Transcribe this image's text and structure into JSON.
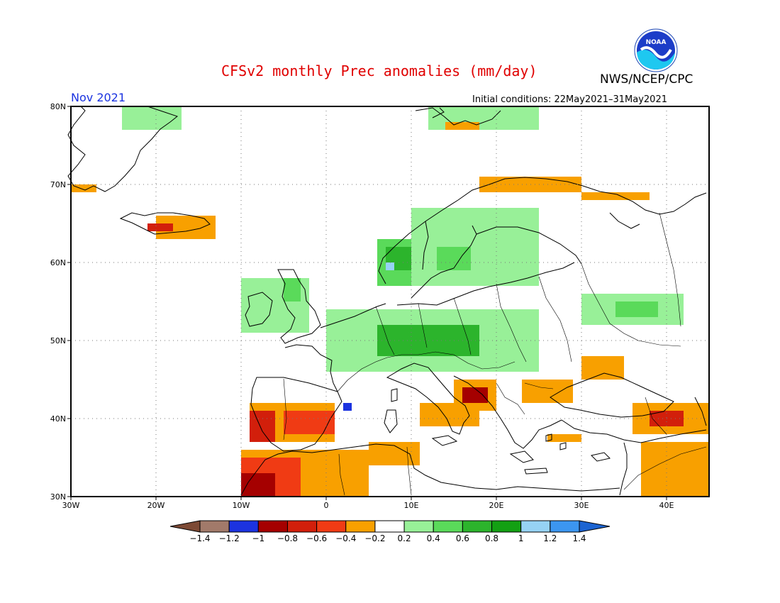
{
  "title": "CFSv2 monthly Prec anomalies (mm/day)",
  "agency": "NWS/NCEP/CPC",
  "logo_text": "NOAA",
  "month_label": "Nov 2021",
  "initial_conditions": "Initial conditions: 22May2021–31May2021",
  "map": {
    "region": "Europe",
    "lon_range": [
      -30,
      45
    ],
    "lat_range": [
      30,
      80
    ],
    "grid": "dotted",
    "lat_ticks": [
      {
        "value": 80,
        "label": "80N"
      },
      {
        "value": 70,
        "label": "70N"
      },
      {
        "value": 60,
        "label": "60N"
      },
      {
        "value": 50,
        "label": "50N"
      },
      {
        "value": 40,
        "label": "40N"
      },
      {
        "value": 30,
        "label": "30N"
      }
    ],
    "lon_ticks": [
      {
        "value": -30,
        "label": "30W"
      },
      {
        "value": -20,
        "label": "20W"
      },
      {
        "value": -10,
        "label": "10W"
      },
      {
        "value": 0,
        "label": "0"
      },
      {
        "value": 10,
        "label": "10E"
      },
      {
        "value": 20,
        "label": "20E"
      },
      {
        "value": 30,
        "label": "30E"
      },
      {
        "value": 40,
        "label": "40E"
      }
    ],
    "anomaly_regions": [
      {
        "area": "Greenland",
        "lon": [
          -24,
          -17
        ],
        "lat": [
          77,
          80
        ],
        "value": 0.3
      },
      {
        "area": "Svalbard",
        "lon": [
          12,
          25
        ],
        "lat": [
          77,
          80
        ],
        "value": 0.3
      },
      {
        "area": "Svalbard",
        "lon": [
          14,
          18
        ],
        "lat": [
          77,
          78
        ],
        "value": -0.3
      },
      {
        "area": "Greenland SE",
        "lon": [
          -30,
          -27
        ],
        "lat": [
          69,
          70
        ],
        "value": -0.3
      },
      {
        "area": "Iceland",
        "lon": [
          -20,
          -13
        ],
        "lat": [
          63,
          66
        ],
        "value": -0.3
      },
      {
        "area": "Iceland",
        "lon": [
          -21,
          -18
        ],
        "lat": [
          64,
          65
        ],
        "value": -0.8
      },
      {
        "area": "Norway",
        "lon": [
          6,
          10
        ],
        "lat": [
          57,
          63
        ],
        "value": 0.5
      },
      {
        "area": "Norway",
        "lon": [
          7,
          10
        ],
        "lat": [
          59,
          62
        ],
        "value": 0.7
      },
      {
        "area": "Norway",
        "lon": [
          7,
          8
        ],
        "lat": [
          59,
          60
        ],
        "value": 1.1
      },
      {
        "area": "Scandinavia",
        "lon": [
          10,
          25
        ],
        "lat": [
          57,
          67
        ],
        "value": 0.3
      },
      {
        "area": "Scandinavia",
        "lon": [
          13,
          17
        ],
        "lat": [
          59,
          62
        ],
        "value": 0.5
      },
      {
        "area": "North Cape",
        "lon": [
          18,
          30
        ],
        "lat": [
          69,
          71
        ],
        "value": -0.3
      },
      {
        "area": "Kola",
        "lon": [
          30,
          38
        ],
        "lat": [
          68,
          69
        ],
        "value": -0.3
      },
      {
        "area": "Britain",
        "lon": [
          -10,
          -2
        ],
        "lat": [
          51,
          58
        ],
        "value": 0.3
      },
      {
        "area": "Britain",
        "lon": [
          -5,
          -3
        ],
        "lat": [
          55,
          58
        ],
        "value": 0.5
      },
      {
        "area": "Central Europe",
        "lon": [
          0,
          25
        ],
        "lat": [
          46,
          54
        ],
        "value": 0.3
      },
      {
        "area": "Central Europe",
        "lon": [
          6,
          18
        ],
        "lat": [
          48,
          52
        ],
        "value": 0.6
      },
      {
        "area": "Russia",
        "lon": [
          30,
          42
        ],
        "lat": [
          52,
          56
        ],
        "value": 0.3
      },
      {
        "area": "Russia",
        "lon": [
          34,
          39
        ],
        "lat": [
          53,
          55
        ],
        "value": 0.5
      },
      {
        "area": "Iberia",
        "lon": [
          -9,
          1
        ],
        "lat": [
          37,
          42
        ],
        "value": -0.3
      },
      {
        "area": "Iberia",
        "lon": [
          -5,
          1
        ],
        "lat": [
          38,
          41
        ],
        "value": -0.6
      },
      {
        "area": "Iberia",
        "lon": [
          -9,
          -6
        ],
        "lat": [
          37,
          41
        ],
        "value": -0.8
      },
      {
        "area": "Catalonia",
        "lon": [
          2,
          3
        ],
        "lat": [
          41,
          42
        ],
        "value": -1.1
      },
      {
        "area": "Morocco",
        "lon": [
          -10,
          5
        ],
        "lat": [
          30,
          36
        ],
        "value": -0.3
      },
      {
        "area": "Morocco",
        "lon": [
          -10,
          -3
        ],
        "lat": [
          30,
          35
        ],
        "value": -0.6
      },
      {
        "area": "Morocco",
        "lon": [
          -10,
          -6
        ],
        "lat": [
          30,
          33
        ],
        "value": -0.9
      },
      {
        "area": "Algeria",
        "lon": [
          5,
          11
        ],
        "lat": [
          34,
          37
        ],
        "value": -0.3
      },
      {
        "area": "Italy",
        "lon": [
          11,
          18
        ],
        "lat": [
          39,
          42
        ],
        "value": -0.3
      },
      {
        "area": "Balkans",
        "lon": [
          15,
          20
        ],
        "lat": [
          41,
          45
        ],
        "value": -0.4
      },
      {
        "area": "Balkans",
        "lon": [
          16,
          19
        ],
        "lat": [
          42,
          44
        ],
        "value": -0.9
      },
      {
        "area": "Romania",
        "lon": [
          23,
          29
        ],
        "lat": [
          42,
          45
        ],
        "value": -0.3
      },
      {
        "area": "Ukraine",
        "lon": [
          30,
          35
        ],
        "lat": [
          45,
          48
        ],
        "value": -0.3
      },
      {
        "area": "Turkey",
        "lon": [
          36,
          45
        ],
        "lat": [
          38,
          42
        ],
        "value": -0.3
      },
      {
        "area": "Turkey",
        "lon": [
          38,
          42
        ],
        "lat": [
          39,
          41
        ],
        "value": -0.7
      },
      {
        "area": "Middle East",
        "lon": [
          37,
          45
        ],
        "lat": [
          30,
          37
        ],
        "value": -0.3
      },
      {
        "area": "Greece",
        "lon": [
          26,
          30
        ],
        "lat": [
          37,
          38
        ],
        "value": -0.3
      }
    ]
  },
  "colorbar": {
    "ticks": [
      "−1.4",
      "−1.2",
      "−1",
      "−0.8",
      "−0.6",
      "−0.4",
      "−0.2",
      "0.2",
      "0.4",
      "0.6",
      "0.8",
      "1",
      "1.2",
      "1.4"
    ],
    "bins": [
      {
        "min": -99,
        "max": -1.4,
        "color": "#7d4a35"
      },
      {
        "min": -1.4,
        "max": -1.2,
        "color": "#a27a6a"
      },
      {
        "min": -1.2,
        "max": -1.0,
        "color": "#1c33e0"
      },
      {
        "min": -1.0,
        "max": -0.8,
        "color": "#a50000"
      },
      {
        "min": -0.8,
        "max": -0.6,
        "color": "#d21f0b"
      },
      {
        "min": -0.6,
        "max": -0.4,
        "color": "#f03b14"
      },
      {
        "min": -0.4,
        "max": -0.2,
        "color": "#f8a000"
      },
      {
        "min": -0.2,
        "max": 0.2,
        "color": "#ffffff"
      },
      {
        "min": 0.2,
        "max": 0.4,
        "color": "#98f098"
      },
      {
        "min": 0.4,
        "max": 0.6,
        "color": "#5ada5a"
      },
      {
        "min": 0.6,
        "max": 0.8,
        "color": "#2cb42c"
      },
      {
        "min": 0.8,
        "max": 1.0,
        "color": "#13a013"
      },
      {
        "min": 1.0,
        "max": 1.2,
        "color": "#96d2f4"
      },
      {
        "min": 1.2,
        "max": 1.4,
        "color": "#3c96f0"
      },
      {
        "min": 1.4,
        "max": 99,
        "color": "#1c64d2"
      }
    ]
  }
}
